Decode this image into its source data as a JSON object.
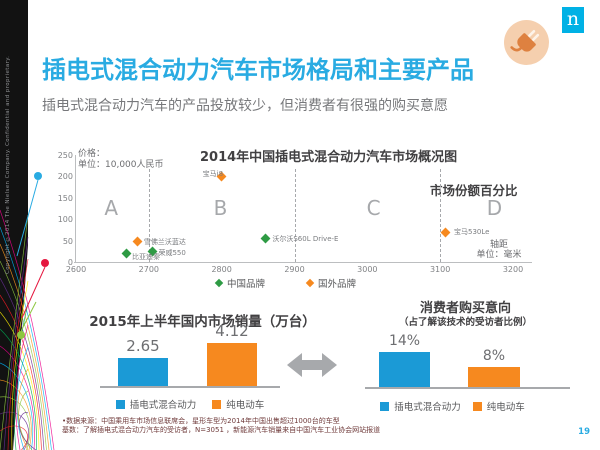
{
  "slide": {
    "title": "插电式混合动力汽车市场格局和主要产品",
    "subtitle": "插电式混合动力汽车的产品投放较少，但消费者有很强的购买意愿",
    "logo_letter": "n",
    "header_icon": "plug-icon",
    "copyright": "Copyright ©2014 The Nielsen Company. Confidential and proprietary.",
    "page_number": "19"
  },
  "colors": {
    "accent_blue": "#29abe2",
    "bar_blue": "#1b9ad6",
    "orange": "#f6891f",
    "green": "#2e9b44",
    "gray_arrow": "#a7a9ac",
    "logo_blue": "#00b1e5"
  },
  "chart_data": [
    {
      "type": "scatter",
      "title": "2014年中国插电式混合动力汽车市场概况图",
      "y_axis_label": [
        "价格：",
        "单位：10,000人民币"
      ],
      "x_axis_label": [
        "轴距",
        "单位：毫米"
      ],
      "annotation": "市场份额百分比",
      "xlim": [
        2600,
        3200
      ],
      "ylim": [
        0,
        250
      ],
      "x_ticks": [
        2600,
        2700,
        2800,
        2900,
        3000,
        3100,
        3200
      ],
      "y_ticks": [
        250,
        200,
        150,
        100,
        50,
        0
      ],
      "dashed_lines_x": [
        2700,
        2900,
        3100
      ],
      "quadrants": [
        {
          "label": "A",
          "x": 2650
        },
        {
          "label": "B",
          "x": 2800
        },
        {
          "label": "C",
          "x": 3010
        },
        {
          "label": "D",
          "x": 3175
        }
      ],
      "legend": [
        {
          "label": "中国品牌",
          "brand": "china",
          "color": "#2e9b44"
        },
        {
          "label": "国外品牌",
          "brand": "foreign",
          "color": "#f6891f"
        }
      ],
      "points": [
        {
          "name": "宝马i8",
          "x": 2800,
          "y": 199,
          "brand": "foreign"
        },
        {
          "name": "雪佛兰沃蓝达",
          "x": 2685,
          "y": 49,
          "brand": "foreign"
        },
        {
          "name": "荣威550",
          "x": 2705,
          "y": 25,
          "brand": "china"
        },
        {
          "name": "比亚迪秦",
          "x": 2670,
          "y": 21,
          "brand": "china"
        },
        {
          "name": "沃尔沃S60L Drive-E",
          "x": 2860,
          "y": 56,
          "brand": "china"
        },
        {
          "name": "宝马530Le",
          "x": 3108,
          "y": 70,
          "brand": "foreign"
        }
      ]
    },
    {
      "type": "bar",
      "title": "2015年上半年国内市场销量（万台）",
      "categories": [
        "插电式混合动力",
        "纯电动车"
      ],
      "values": [
        2.65,
        4.12
      ],
      "value_labels": [
        "2.65",
        "4.12"
      ],
      "colors": [
        "#1b9ad6",
        "#f6891f"
      ],
      "ylim": [
        0,
        4.5
      ]
    },
    {
      "type": "bar",
      "title": "消费者购买意向",
      "subtitle": "（占了解该技术的受访者比例）",
      "categories": [
        "插电式混合动力",
        "纯电动车"
      ],
      "values": [
        14,
        8
      ],
      "value_labels": [
        "14%",
        "8%"
      ],
      "colors": [
        "#1b9ad6",
        "#f6891f"
      ],
      "ylim": [
        0,
        16
      ]
    }
  ],
  "footnotes": [
    "•数据来源：中国乘用车市场信息联席会，星形车型为2014年中国出售超过1000台的车型",
    "基数：了解插电式混合动力汽车的受访者，N=3051 ，新能源汽车销量来自中国汽车工业协会网站报道"
  ]
}
